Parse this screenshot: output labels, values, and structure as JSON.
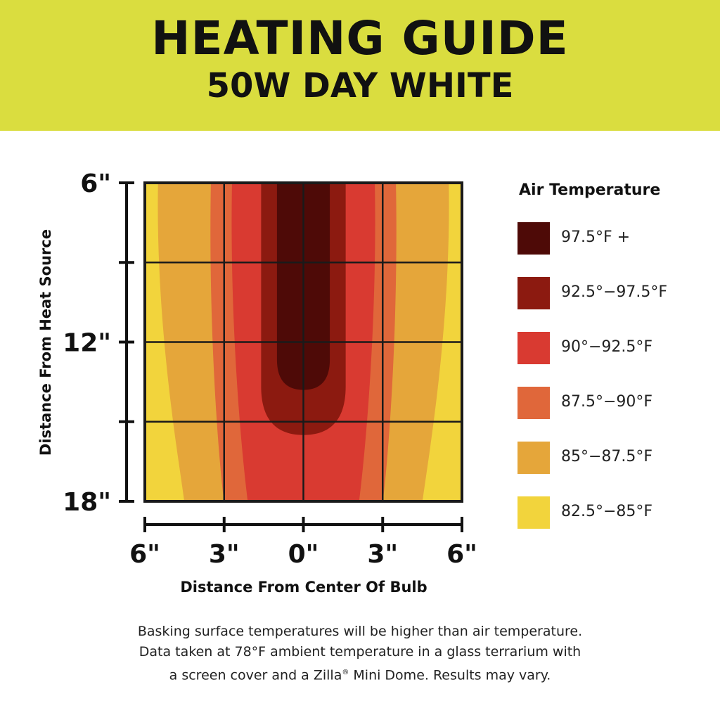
{
  "header": {
    "title": "HEATING GUIDE",
    "subtitle": "50W DAY WHITE",
    "background_color": "#dadd3f"
  },
  "chart_data": {
    "type": "heatmap",
    "xlabel": "Distance From Center Of Bulb",
    "ylabel": "Distance From Heat Source",
    "x_ticks": [
      "6\"",
      "3\"",
      "0\"",
      "3\"",
      "6\""
    ],
    "y_ticks": [
      "6\"",
      "12\"",
      "18\""
    ],
    "x_range_inches": [
      -6,
      6
    ],
    "y_range_inches": [
      6,
      18
    ],
    "grid": true,
    "legend_title": "Air Temperature",
    "legend_position": "right",
    "legend": [
      {
        "label": "97.5°F +",
        "color": "#4e0a07"
      },
      {
        "label": "92.5°−97.5°F",
        "color": "#8c1a10"
      },
      {
        "label": "90°−92.5°F",
        "color": "#d93a31"
      },
      {
        "label": "87.5°−90°F",
        "color": "#e0673a"
      },
      {
        "label": "85°−87.5°F",
        "color": "#e5a63a"
      },
      {
        "label": "82.5°−85°F",
        "color": "#f2d43c"
      }
    ],
    "zones": [
      {
        "range": "82.5°−85°F",
        "extent": "full chart area (background)"
      },
      {
        "range": "85°−87.5°F",
        "half_width_at_6in": 5.5,
        "half_width_at_18in": 4.5
      },
      {
        "range": "87.5°−90°F",
        "half_width_at_6in": 3.5,
        "half_width_at_18in": 3.0
      },
      {
        "range": "90°−92.5°F",
        "half_width_at_6in": 2.7,
        "half_width_at_18in": 2.1
      },
      {
        "range": "92.5°−97.5°F",
        "half_width_at_6in": 1.6,
        "bottom_depth_in": 15.5
      },
      {
        "range": "97.5°F +",
        "half_width_at_6in": 1.0,
        "bottom_depth_in": 13.8
      }
    ]
  },
  "footnote": {
    "line1": "Basking surface temperatures will be higher than air temperature.",
    "line2": "Data taken at 78°F ambient temperature in a glass terrarium with",
    "line3_a": "a screen cover and a Zilla",
    "line3_sup": "®",
    "line3_b": " Mini Dome. Results may vary."
  }
}
